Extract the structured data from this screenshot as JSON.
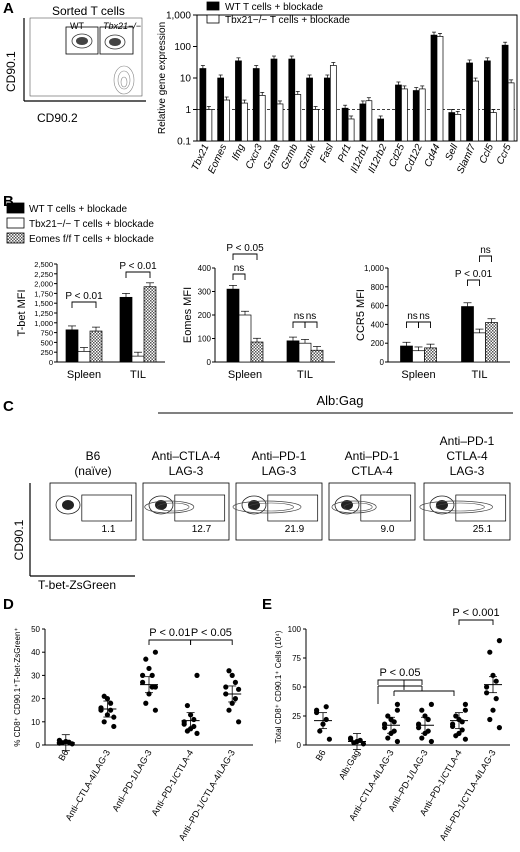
{
  "panels": {
    "A": {
      "letter": "A",
      "flow": {
        "title": "Sorted T cells",
        "gate_wt": "WT",
        "gate_ko": "Tbx21−/−",
        "ylabel": "CD90.1",
        "xlabel": "CD90.2"
      }
    },
    "B": {
      "letter": "B",
      "legend": [
        "WT T cells + blockade",
        "Tbx21−/− T  cells + blockade",
        "Eomes f/f T cells + blockade"
      ]
    },
    "C": {
      "letter": "C",
      "group_label": "Alb:Gag",
      "ylabel": "CD90.1",
      "xlabel": "T-bet-ZsGreen",
      "conditions": [
        {
          "line1": "B6",
          "line2": "(naïve)",
          "line3": "",
          "pct": "1.1"
        },
        {
          "line1": "Anti–CTLA-4",
          "line2": "LAG-3",
          "line3": "",
          "pct": "12.7"
        },
        {
          "line1": "Anti–PD-1",
          "line2": "LAG-3",
          "line3": "",
          "pct": "21.9"
        },
        {
          "line1": "Anti–PD-1",
          "line2": "CTLA-4",
          "line3": "",
          "pct": "9.0"
        },
        {
          "line1": "Anti–PD-1",
          "line2": "CTLA-4",
          "line3": "LAG-3",
          "pct": "25.1"
        }
      ]
    },
    "D": {
      "letter": "D"
    },
    "E": {
      "letter": "E"
    }
  },
  "chart_data": [
    {
      "id": "A",
      "type": "bar",
      "ylabel": "Relative gene expression",
      "yscale": "log",
      "ylim": [
        0.1,
        1000
      ],
      "yticks": [
        "0.1",
        "1",
        "10",
        "100",
        "1,000"
      ],
      "reference_line": 1,
      "legend": "top-left",
      "categories": [
        "Tbx21",
        "Eomes",
        "Ifng",
        "Cxcr3",
        "Gzma",
        "Gzmb",
        "Gzmk",
        "Fasl",
        "Prf1",
        "Il12rb1",
        "Il12rb2",
        "Cd25",
        "Cd122",
        "Cd44",
        "Sell",
        "Slamf7",
        "Ccl5",
        "Ccr5"
      ],
      "series": [
        {
          "name": "WT T cells + blockade",
          "color": "#000000",
          "values": [
            20,
            10,
            35,
            20,
            40,
            40,
            10,
            10,
            1.1,
            1.5,
            0.5,
            6,
            4,
            230,
            0.8,
            30,
            35,
            110
          ]
        },
        {
          "name": "Tbx21−/− T  cells + blockade",
          "color": "#ffffff",
          "values": [
            1.0,
            2.0,
            1.6,
            2.8,
            1.5,
            3.0,
            1.0,
            25,
            0.5,
            1.9,
            null,
            4.5,
            4.5,
            210,
            0.7,
            8,
            0.8,
            7
          ]
        }
      ]
    },
    {
      "id": "B1",
      "type": "bar",
      "ylabel": "T-bet MFI",
      "ylim": [
        0,
        2500
      ],
      "yticks": [
        "0",
        "250",
        "500",
        "750",
        "1,000",
        "1,250",
        "1,500",
        "1,750",
        "2,000",
        "2,250",
        "2,500"
      ],
      "categories": [
        "Spleen",
        "TIL"
      ],
      "series": [
        {
          "name": "WT",
          "values": [
            820,
            1650
          ]
        },
        {
          "name": "Tbx21−/−",
          "values": [
            270,
            150
          ]
        },
        {
          "name": "Eomes f/f",
          "values": [
            790,
            1920
          ]
        }
      ],
      "annotations": [
        {
          "label": "P < 0.01",
          "group": "Spleen"
        },
        {
          "label": "P < 0.01",
          "group": "TIL"
        }
      ]
    },
    {
      "id": "B2",
      "type": "bar",
      "ylabel": "Eomes MFI",
      "ylim": [
        0,
        400
      ],
      "yticks": [
        "0",
        "100",
        "200",
        "300",
        "400"
      ],
      "categories": [
        "Spleen",
        "TIL"
      ],
      "series": [
        {
          "name": "WT",
          "values": [
            310,
            90
          ]
        },
        {
          "name": "Tbx21−/−",
          "values": [
            200,
            80
          ]
        },
        {
          "name": "Eomes f/f",
          "values": [
            85,
            50
          ]
        }
      ],
      "annotations": [
        {
          "label": "P < 0.05",
          "group": "Spleen"
        },
        {
          "label": "ns",
          "group": "Spleen"
        },
        {
          "label": "ns",
          "group": "TIL"
        },
        {
          "label": "ns",
          "group": "TIL"
        }
      ]
    },
    {
      "id": "B3",
      "type": "bar",
      "ylabel": "CCR5 MFI",
      "ylim": [
        0,
        1000
      ],
      "yticks": [
        "0",
        "200",
        "400",
        "600",
        "800",
        "1,000"
      ],
      "categories": [
        "Spleen",
        "TIL"
      ],
      "series": [
        {
          "name": "WT",
          "values": [
            170,
            590
          ]
        },
        {
          "name": "Tbx21−/−",
          "values": [
            120,
            310
          ]
        },
        {
          "name": "Eomes f/f",
          "values": [
            150,
            420
          ]
        }
      ],
      "annotations": [
        {
          "label": "ns",
          "group": "Spleen"
        },
        {
          "label": "ns",
          "group": "Spleen"
        },
        {
          "label": "ns",
          "group": "TIL"
        },
        {
          "label": "P < 0.01",
          "group": "TIL"
        }
      ]
    },
    {
      "id": "D",
      "type": "scatter",
      "ylabel": "% CD8⁺ CD90.1⁺T-bet-ZsGreen⁺",
      "ylim": [
        0,
        50
      ],
      "yticks": [
        "0",
        "10",
        "20",
        "30",
        "40",
        "50"
      ],
      "categories": [
        "B6",
        "Anti–CTLA-4/LAG-3",
        "Anti–PD-1/LAG-3",
        "Anti–PD-1/CTLA-4",
        "Anti–PD-1/CTLA-4/LAG-3"
      ],
      "points": [
        [
          0.5,
          1.0,
          1.5,
          1.2,
          0.8,
          2.0
        ],
        [
          8,
          10,
          13,
          15,
          15,
          16,
          18,
          20,
          21,
          12
        ],
        [
          15,
          18,
          22,
          25,
          27,
          30,
          30,
          33,
          37,
          40,
          25
        ],
        [
          5,
          6,
          7,
          8,
          9,
          10,
          11,
          13,
          17,
          30
        ],
        [
          10,
          15,
          18,
          20,
          22,
          25,
          27,
          30,
          32,
          24
        ]
      ],
      "means": [
        1.0,
        15.5,
        26,
        10.5,
        22
      ],
      "annotations": [
        {
          "label": "P < 0.01",
          "between": [
            2,
            3
          ]
        },
        {
          "label": "P < 0.05",
          "between": [
            3,
            4
          ]
        }
      ]
    },
    {
      "id": "E",
      "type": "scatter",
      "ylabel": "Total CD8⁺ CD90.1⁺ Cells (10⁴)",
      "ylim": [
        0,
        100
      ],
      "yticks": [
        "0",
        "25",
        "50",
        "75",
        "100"
      ],
      "categories": [
        "B6",
        "Alb:Gag",
        "Anti–CTLA-4/LAG-3",
        "Anti–PD-1/LAG-3",
        "Anti–PD-1/CTLA-4",
        "Anti–PD-1/CTLA-4/LAG-3"
      ],
      "points": [
        [
          5,
          12,
          18,
          22,
          28,
          30,
          33
        ],
        [
          1,
          2,
          3,
          4,
          5,
          6
        ],
        [
          3,
          6,
          10,
          12,
          15,
          18,
          20,
          22,
          25,
          30,
          35
        ],
        [
          3,
          6,
          10,
          12,
          15,
          18,
          22,
          25,
          30,
          35
        ],
        [
          5,
          8,
          10,
          13,
          16,
          18,
          20,
          22,
          25,
          30,
          35
        ],
        [
          15,
          22,
          30,
          40,
          45,
          50,
          55,
          60,
          80,
          90
        ]
      ],
      "means": [
        21,
        3,
        17,
        17,
        21,
        52
      ],
      "annotations": [
        {
          "label": "P < 0.05",
          "between": [
            1,
            [
              3,
              4
            ]
          ]
        },
        {
          "label": "P < 0.001",
          "between": [
            4,
            5
          ]
        }
      ]
    }
  ]
}
